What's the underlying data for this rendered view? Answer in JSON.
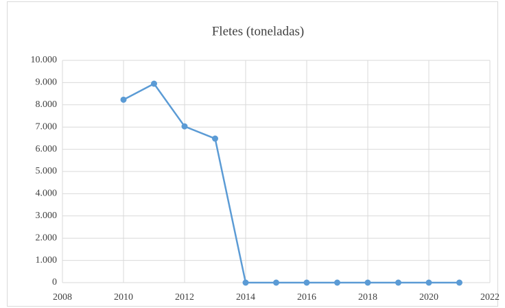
{
  "chart_data": {
    "type": "line",
    "title": "Fletes (toneladas)",
    "x": [
      2010,
      2011,
      2012,
      2013,
      2014,
      2015,
      2016,
      2017,
      2018,
      2019,
      2020,
      2021
    ],
    "series": [
      {
        "name": "Fletes (toneladas)",
        "color": "#5b9bd5",
        "values": [
          8230,
          8950,
          7030,
          6480,
          0,
          0,
          0,
          0,
          0,
          0,
          0,
          0
        ]
      }
    ],
    "xlim": [
      2008,
      2022
    ],
    "xticks": [
      2008,
      2010,
      2012,
      2014,
      2016,
      2018,
      2020,
      2022
    ],
    "ylim": [
      0,
      10000
    ],
    "yticks": [
      0,
      {
        "value": 1000,
        "label": "1.000"
      },
      {
        "value": 2000,
        "label": "2.000"
      },
      {
        "value": 3000,
        "label": "3.000"
      },
      {
        "value": 4000,
        "label": "4.000"
      },
      {
        "value": 5000,
        "label": "5.000"
      },
      {
        "value": 6000,
        "label": "6.000"
      },
      {
        "value": 7000,
        "label": "7.000"
      },
      {
        "value": 8000,
        "label": "8.000"
      },
      {
        "value": 9000,
        "label": "9.000"
      },
      {
        "value": 10000,
        "label": "10.000"
      }
    ],
    "grid": true
  }
}
